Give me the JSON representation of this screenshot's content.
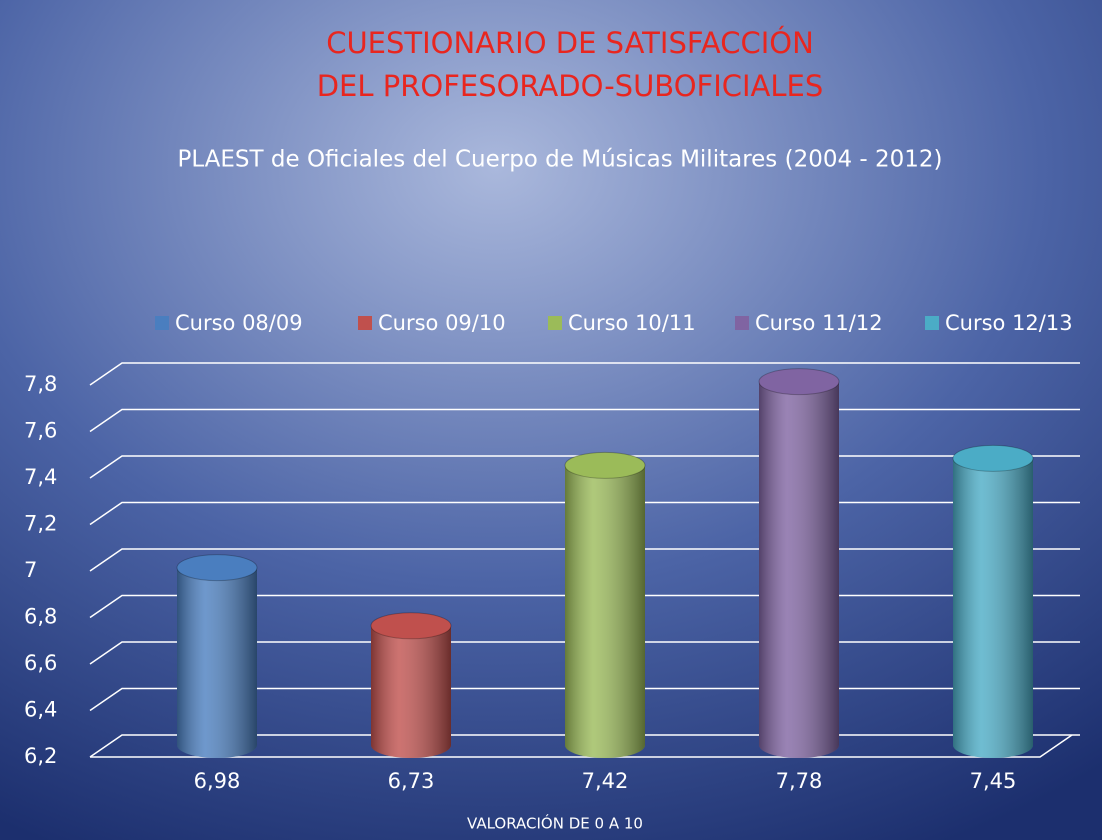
{
  "chart_data": {
    "type": "bar",
    "title": [
      "CUESTIONARIO DE SATISFACCIÓN",
      "DEL PROFESORADO-SUBOFICIALES"
    ],
    "subtitle": "PLAEST de Oficiales del Cuerpo de Músicas Militares (2004 - 2012)",
    "x_label": "VALORACIÓN DE 0 A 10",
    "series": [
      {
        "name": "Curso 08/09",
        "color": "#4a7ebf",
        "values": [
          6.98
        ],
        "value_labels": [
          "6,98"
        ]
      },
      {
        "name": "Curso 09/10",
        "color": "#c0504d",
        "values": [
          6.73
        ],
        "value_labels": [
          "6,73"
        ]
      },
      {
        "name": "Curso 10/11",
        "color": "#9bbb59",
        "values": [
          7.42
        ],
        "value_labels": [
          "7,42"
        ]
      },
      {
        "name": "Curso 11/12",
        "color": "#8064a2",
        "values": [
          7.78
        ],
        "value_labels": [
          "7,78"
        ]
      },
      {
        "name": "Curso 12/13",
        "color": "#4bacc6",
        "values": [
          7.45
        ],
        "value_labels": [
          "7,45"
        ]
      }
    ],
    "ylim": [
      6.2,
      7.8
    ],
    "yticks": [
      {
        "value": 6.2,
        "label": "6,2"
      },
      {
        "value": 6.4,
        "label": "6,4"
      },
      {
        "value": 6.6,
        "label": "6,6"
      },
      {
        "value": 6.8,
        "label": "6,8"
      },
      7,
      {
        "value": 7.2,
        "label": "7,2"
      },
      {
        "value": 7.4,
        "label": "7,4"
      },
      {
        "value": 7.6,
        "label": "7,6"
      },
      {
        "value": 7.8,
        "label": "7,8"
      }
    ],
    "grid": true,
    "legend": "top"
  }
}
